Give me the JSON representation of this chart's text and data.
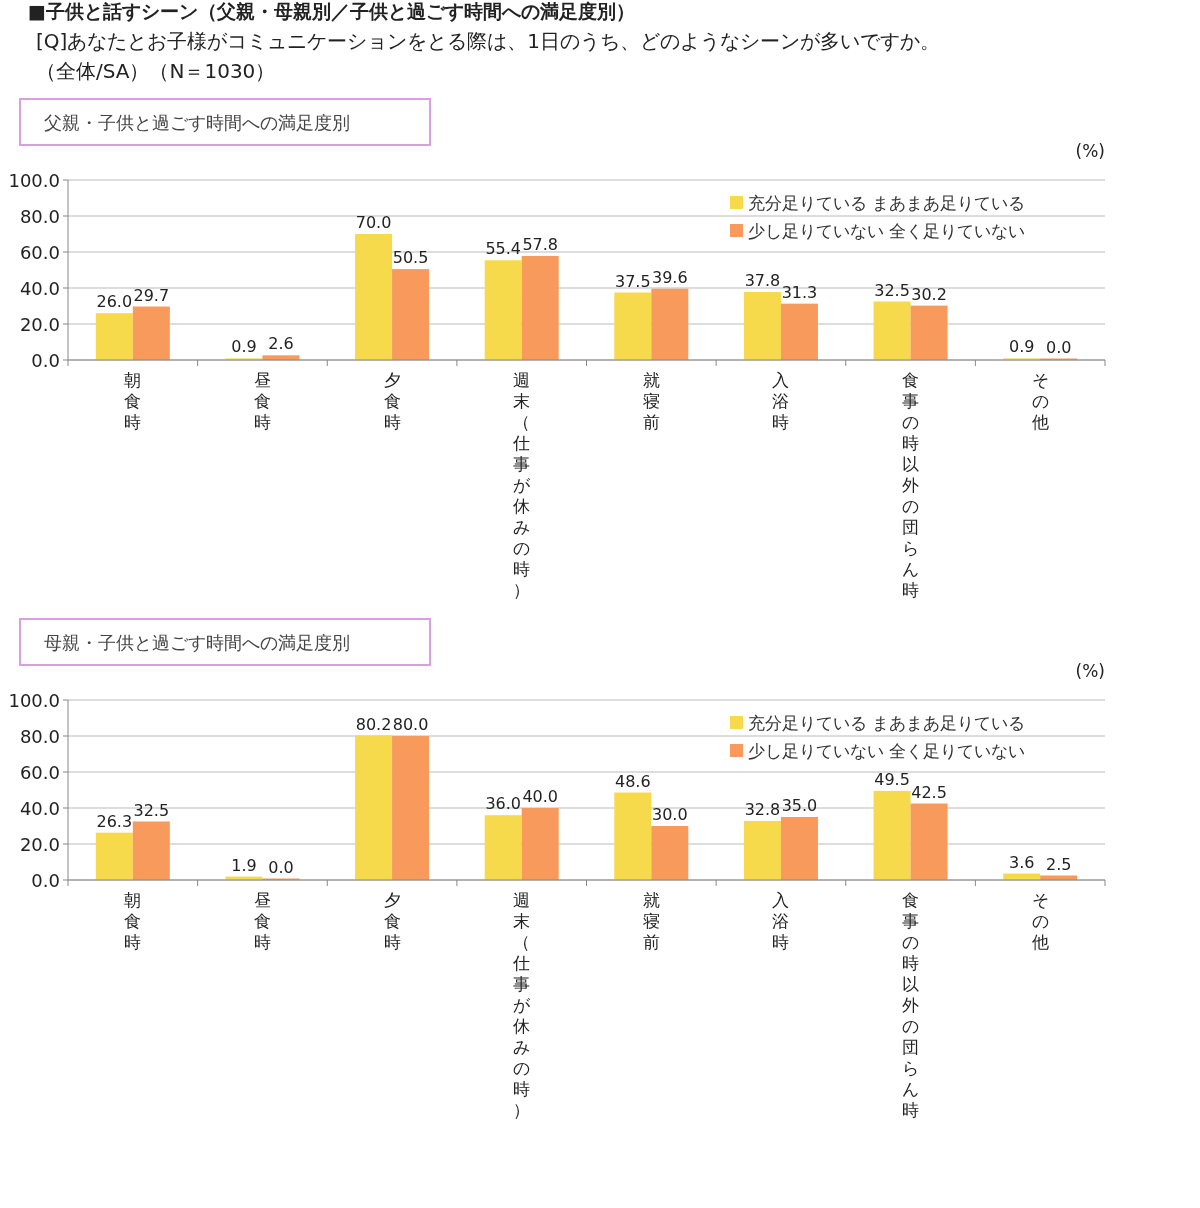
{
  "chart_data": [
    {
      "type": "bar",
      "title": "父親・子供と過ごす時間への満足度別",
      "ylabel": "(%)",
      "annotations": [
        "■子供と話すシーン（父親・母親別／子供と過ごす時間への満足度別）",
        "[Q]あなたとお子様がコミュニケーションをとる際は、1日のうち、どのようなシーンが多いですか。",
        "（全体/SA）（N＝1030）"
      ],
      "categories": [
        "朝食時",
        "昼食時",
        "夕食時",
        "週末（仕事が休みの時）",
        "就寝前",
        "入浴時",
        "食事の時以外の団らん時",
        "その他"
      ],
      "series": [
        {
          "name": "充分足りている まあまあ足りている",
          "color": "#f7d94c",
          "values": [
            26.0,
            0.9,
            70.0,
            55.4,
            37.5,
            37.8,
            32.5,
            0.9
          ],
          "value_labels": [
            "26.0",
            "0.9",
            "70.0",
            "55.4",
            "37.5",
            "37.8",
            "32.5",
            "0.9"
          ]
        },
        {
          "name": "少し足りていない 全く足りていない",
          "color": "#f79a5b",
          "values": [
            29.7,
            2.6,
            50.5,
            57.8,
            39.6,
            31.3,
            30.2,
            0.0
          ],
          "value_labels": [
            "29.7",
            "2.6",
            "50.5",
            "57.8",
            "39.6",
            "31.3",
            "30.2",
            "0.0"
          ]
        }
      ],
      "ylim": [
        0,
        100
      ],
      "yticks": [
        {
          "value": 0,
          "label": "0.0"
        },
        {
          "value": 20,
          "label": "20.0"
        },
        {
          "value": 40,
          "label": "40.0"
        },
        {
          "value": 60,
          "label": "60.0"
        },
        {
          "value": 80,
          "label": "80.0"
        },
        {
          "value": 100,
          "label": "100.0"
        }
      ],
      "grid": "y",
      "legend": "top right",
      "data_labels": true
    },
    {
      "type": "bar",
      "title": "母親・子供と過ごす時間への満足度別",
      "ylabel": "(%)",
      "categories": [
        "朝食時",
        "昼食時",
        "夕食時",
        "週末（仕事が休みの時）",
        "就寝前",
        "入浴時",
        "食事の時以外の団らん時",
        "その他"
      ],
      "series": [
        {
          "name": "充分足りている まあまあ足りている",
          "color": "#f7d94c",
          "values": [
            26.3,
            1.9,
            80.2,
            36.0,
            48.6,
            32.8,
            49.5,
            3.6
          ],
          "value_labels": [
            "26.3",
            "1.9",
            "80.2",
            "36.0",
            "48.6",
            "32.8",
            "49.5",
            "3.6"
          ]
        },
        {
          "name": "少し足りていない 全く足りていない",
          "color": "#f79a5b",
          "values": [
            32.5,
            0.0,
            80.0,
            40.0,
            30.0,
            35.0,
            42.5,
            2.5
          ],
          "value_labels": [
            "32.5",
            "0.0",
            "80.0",
            "40.0",
            "30.0",
            "35.0",
            "42.5",
            "2.5"
          ]
        }
      ],
      "ylim": [
        0,
        100
      ],
      "yticks": [
        {
          "value": 0,
          "label": "0.0"
        },
        {
          "value": 20,
          "label": "20.0"
        },
        {
          "value": 40,
          "label": "40.0"
        },
        {
          "value": 60,
          "label": "60.0"
        },
        {
          "value": 80,
          "label": "80.0"
        },
        {
          "value": 100,
          "label": "100.0"
        }
      ],
      "grid": "y",
      "legend": "top right",
      "data_labels": true
    }
  ]
}
